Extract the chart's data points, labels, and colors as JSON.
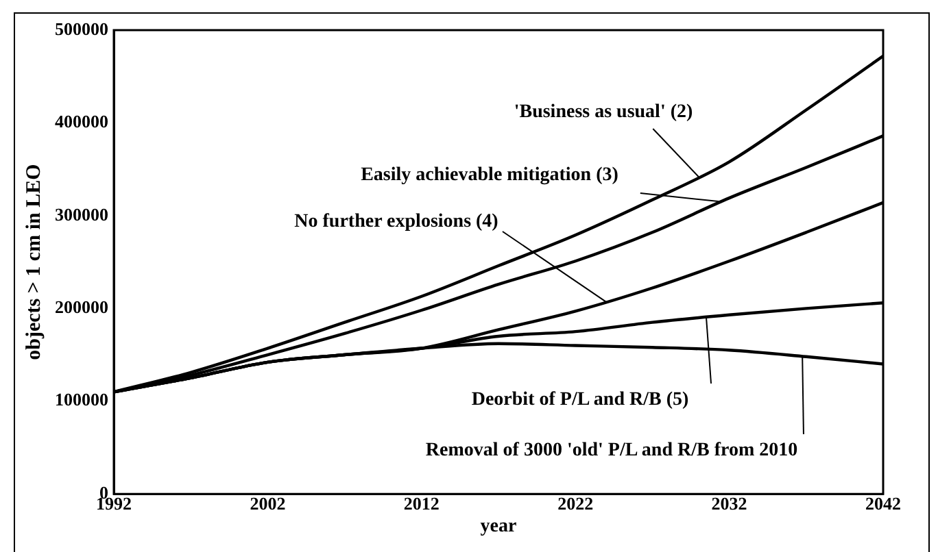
{
  "chart_data": {
    "type": "line",
    "xlabel": "year",
    "ylabel": "objects > 1 cm in LEO",
    "x": [
      1992,
      1997,
      2002,
      2007,
      2012,
      2017,
      2022,
      2027,
      2032,
      2037,
      2042
    ],
    "series": [
      {
        "color": "#000000",
        "values": [
          110000,
          131000,
          157000,
          185000,
          213000,
          246000,
          279000,
          317000,
          358000,
          414000,
          472000
        ]
      },
      {
        "color": "#000000",
        "values": [
          110000,
          128000,
          150000,
          173000,
          198000,
          226000,
          251000,
          282000,
          319000,
          352000,
          386000
        ]
      },
      {
        "color": "#000000",
        "values": [
          110000,
          125000,
          142000,
          150000,
          157000,
          177000,
          197000,
          222000,
          251000,
          282000,
          314000
        ]
      },
      {
        "color": "#000000",
        "values": [
          110000,
          125000,
          142000,
          150000,
          157000,
          170000,
          175000,
          185000,
          193000,
          200000,
          206000
        ]
      },
      {
        "color": "#000000",
        "values": [
          110000,
          125000,
          142000,
          150000,
          157000,
          162000,
          160000,
          158000,
          155000,
          148000,
          140000
        ]
      }
    ],
    "annotations": [
      {
        "text": "'Business as usual' (2)",
        "x": 2030,
        "y": 342000
      },
      {
        "text": "Easily achievable mitigation (3)",
        "x": 2031.5,
        "y": 315000
      },
      {
        "text": "No further explosions (4)",
        "x": 2024,
        "y": 207000
      },
      {
        "text": "Deorbit of P/L and R/B (5)",
        "x": 2030.5,
        "y": 191000
      },
      {
        "text": "Removal of 3000 'old' P/L and R/B from 2010",
        "x": 2036.75,
        "y": 148000
      }
    ],
    "xlim": [
      1992,
      2042
    ],
    "xticks": [
      1992,
      2002,
      2012,
      2022,
      2032,
      2042
    ],
    "ylim": [
      0,
      500000
    ],
    "yticks": [
      0,
      100000,
      200000,
      300000,
      400000,
      500000
    ],
    "grid": false,
    "legend": false,
    "marker": "none",
    "line_style": "solid"
  }
}
